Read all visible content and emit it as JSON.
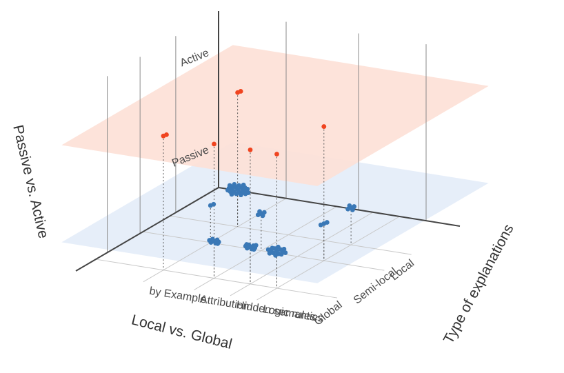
{
  "chart_data": {
    "type": "scatter",
    "title": "",
    "axes": {
      "x": {
        "title": "Local vs. Global",
        "ticks": [
          "Local",
          "Semi-local",
          "Global"
        ]
      },
      "y": {
        "title": "Type of explanations",
        "ticks": [
          "Logic rules",
          "Hidden semantics",
          "Attribution",
          "by Example"
        ]
      },
      "z": {
        "title": "Passive vs. Active",
        "ticks": [
          "Passive",
          "Active"
        ]
      }
    },
    "planes": [
      {
        "level": "Passive",
        "color": "#e3ecf8"
      },
      {
        "level": "Active",
        "color": "#fde0d6"
      }
    ],
    "grid": true,
    "legend": "none",
    "series": [
      {
        "color": "#3a78b6",
        "clusters": [
          {
            "x": "Local",
            "y": "Logic rules",
            "z": "Passive",
            "count": 5
          },
          {
            "x": "Local",
            "y": "by Example",
            "z": "Passive",
            "count": 24
          },
          {
            "x": "Semi-local",
            "y": "Logic rules",
            "z": "Passive",
            "count": 3
          },
          {
            "x": "Semi-local",
            "y": "by Example",
            "z": "Passive",
            "count": 2
          },
          {
            "x": "Semi-local",
            "y": "Attribution",
            "z": "Passive",
            "count": 5
          },
          {
            "x": "Global",
            "y": "Logic rules",
            "z": "Passive",
            "count": 15
          },
          {
            "x": "Global",
            "y": "Hidden semantics",
            "z": "Passive",
            "count": 10
          },
          {
            "x": "Global",
            "y": "Attribution",
            "z": "Passive",
            "count": 8
          }
        ]
      },
      {
        "color": "#f0441f",
        "clusters": [
          {
            "x": "Local",
            "y": "by Example",
            "z": "Active",
            "count": 2
          },
          {
            "x": "Semi-local",
            "y": "Logic rules",
            "z": "Active",
            "count": 1
          },
          {
            "x": "Global",
            "y": "Logic rules",
            "z": "Active",
            "count": 1
          },
          {
            "x": "Global",
            "y": "Hidden semantics",
            "z": "Active",
            "count": 1
          },
          {
            "x": "Global",
            "y": "Attribution",
            "z": "Active",
            "count": 1
          },
          {
            "x": "Global",
            "y": "by Example",
            "z": "Active",
            "count": 2
          }
        ]
      }
    ]
  }
}
